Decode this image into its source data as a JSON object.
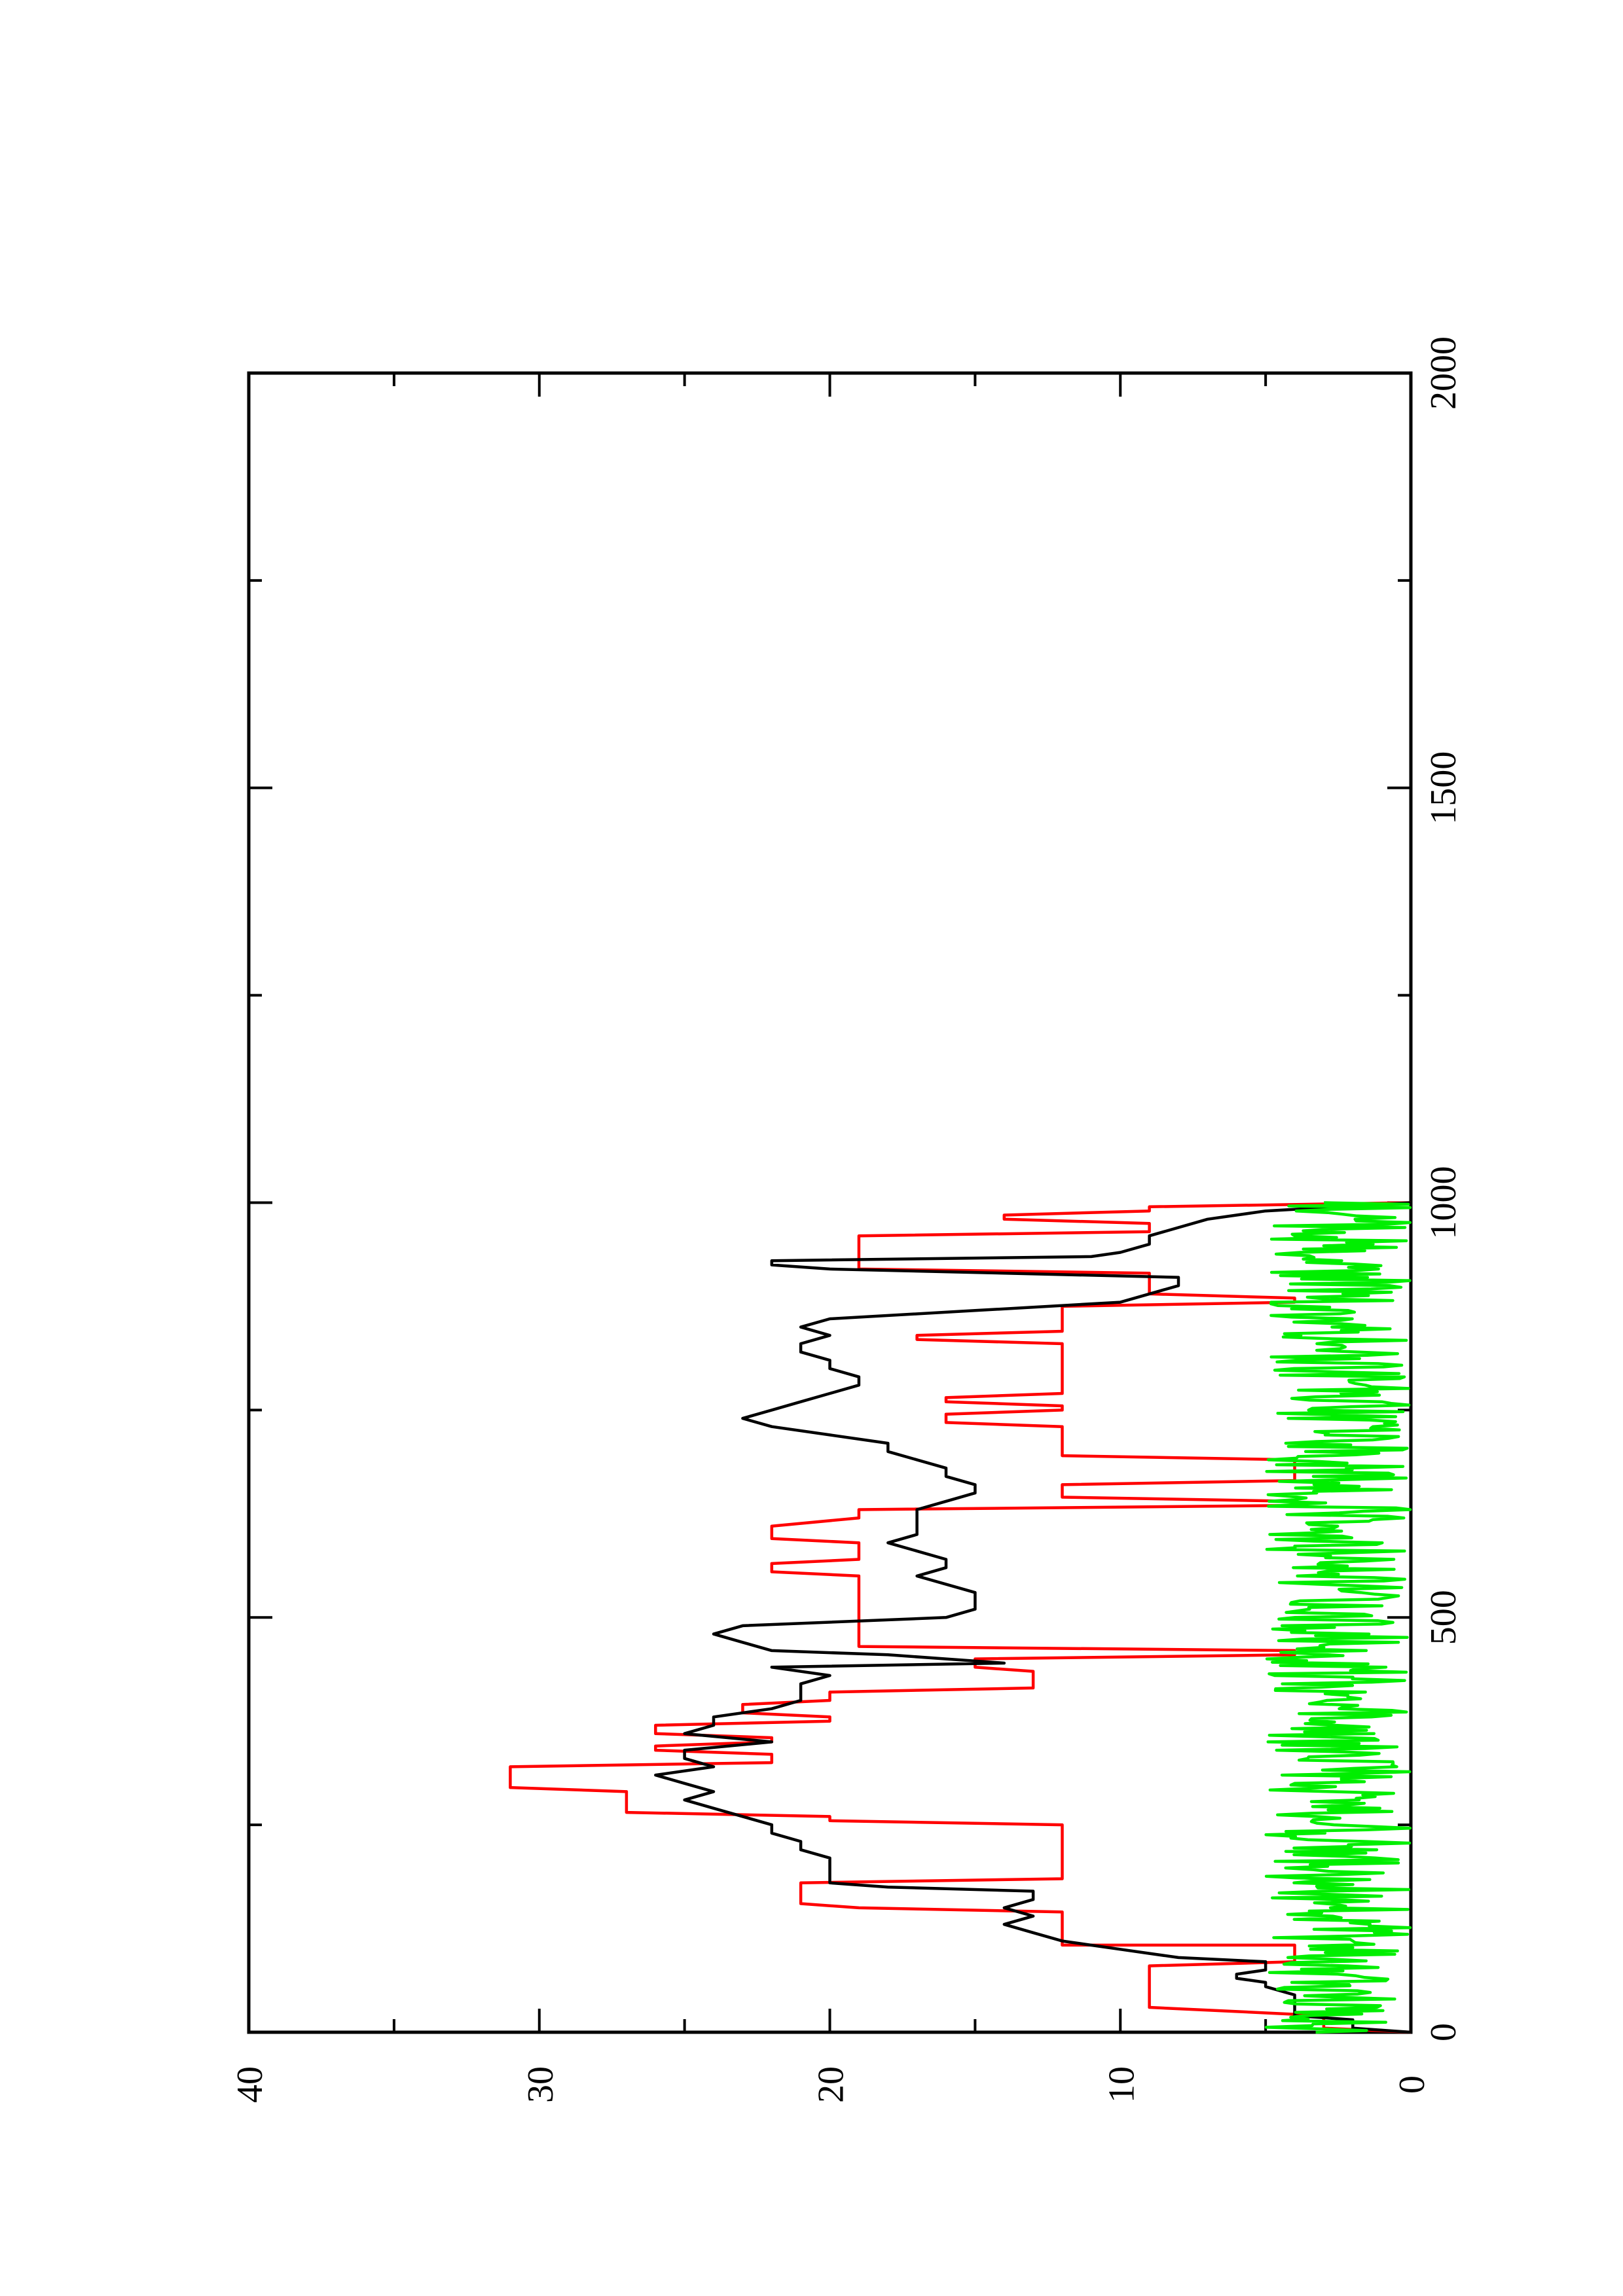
{
  "chart_data": {
    "type": "line",
    "orientation": "rotated-90",
    "xlim": [
      0,
      2000
    ],
    "ylim": [
      0,
      40
    ],
    "x_ticks_major": [
      0,
      500,
      1000,
      1500,
      2000
    ],
    "x_ticks_minor": [
      250,
      750,
      1250,
      1750
    ],
    "y_ticks_major": [
      0,
      10,
      20,
      30,
      40
    ],
    "y_ticks_minor": [
      5,
      15,
      25,
      35
    ],
    "x_tick_labels": [
      "0",
      "500",
      "1000",
      "1500",
      "2000"
    ],
    "y_tick_labels": [
      "0",
      "10",
      "20",
      "30",
      "40"
    ],
    "title": "",
    "xlabel": "",
    "ylabel": "",
    "grid": false,
    "series": [
      {
        "color": "#ff0000",
        "step": true,
        "points": [
          [
            0,
            0
          ],
          [
            5,
            3
          ],
          [
            20,
            3
          ],
          [
            30,
            9
          ],
          [
            80,
            9
          ],
          [
            85,
            4
          ],
          [
            105,
            4
          ],
          [
            105,
            12
          ],
          [
            145,
            12
          ],
          [
            150,
            19
          ],
          [
            155,
            21
          ],
          [
            180,
            21
          ],
          [
            185,
            12
          ],
          [
            250,
            12
          ],
          [
            255,
            20
          ],
          [
            260,
            20
          ],
          [
            265,
            27
          ],
          [
            290,
            27
          ],
          [
            295,
            31
          ],
          [
            320,
            31
          ],
          [
            325,
            22
          ],
          [
            335,
            22
          ],
          [
            340,
            26
          ],
          [
            345,
            26
          ],
          [
            350,
            22
          ],
          [
            355,
            22
          ],
          [
            360,
            26
          ],
          [
            370,
            26
          ],
          [
            375,
            20
          ],
          [
            380,
            20
          ],
          [
            385,
            23
          ],
          [
            395,
            23
          ],
          [
            400,
            20
          ],
          [
            410,
            20
          ],
          [
            415,
            13
          ],
          [
            435,
            13
          ],
          [
            440,
            15
          ],
          [
            450,
            15
          ],
          [
            455,
            4
          ],
          [
            460,
            4
          ],
          [
            465,
            19
          ],
          [
            470,
            19
          ],
          [
            480,
            19
          ],
          [
            490,
            19
          ],
          [
            550,
            19
          ],
          [
            555,
            22
          ],
          [
            565,
            22
          ],
          [
            570,
            19
          ],
          [
            590,
            19
          ],
          [
            595,
            22
          ],
          [
            610,
            22
          ],
          [
            620,
            19
          ],
          [
            630,
            19
          ],
          [
            635,
            4
          ],
          [
            640,
            4
          ],
          [
            645,
            12
          ],
          [
            660,
            12
          ],
          [
            665,
            4
          ],
          [
            690,
            4
          ],
          [
            695,
            12
          ],
          [
            730,
            12
          ],
          [
            735,
            16
          ],
          [
            745,
            16
          ],
          [
            750,
            12
          ],
          [
            755,
            12
          ],
          [
            760,
            16
          ],
          [
            765,
            16
          ],
          [
            770,
            12
          ],
          [
            830,
            12
          ],
          [
            835,
            17
          ],
          [
            840,
            17
          ],
          [
            845,
            12
          ],
          [
            875,
            12
          ],
          [
            880,
            4
          ],
          [
            885,
            4
          ],
          [
            890,
            9
          ],
          [
            915,
            9
          ],
          [
            920,
            19
          ],
          [
            960,
            19
          ],
          [
            965,
            9
          ],
          [
            975,
            9
          ],
          [
            980,
            14
          ],
          [
            985,
            14
          ],
          [
            990,
            9
          ],
          [
            995,
            9
          ],
          [
            1000,
            0
          ]
        ]
      },
      {
        "color": "#000000",
        "step": false,
        "points": [
          [
            0,
            0
          ],
          [
            5,
            2
          ],
          [
            15,
            2
          ],
          [
            20,
            4
          ],
          [
            30,
            4
          ],
          [
            45,
            4
          ],
          [
            55,
            5
          ],
          [
            60,
            5
          ],
          [
            65,
            6
          ],
          [
            70,
            6
          ],
          [
            75,
            5
          ],
          [
            85,
            5
          ],
          [
            90,
            8
          ],
          [
            95,
            9
          ],
          [
            100,
            10
          ],
          [
            110,
            12
          ],
          [
            120,
            13
          ],
          [
            130,
            14
          ],
          [
            140,
            13
          ],
          [
            150,
            14
          ],
          [
            160,
            13
          ],
          [
            170,
            13
          ],
          [
            175,
            18
          ],
          [
            180,
            20
          ],
          [
            190,
            20
          ],
          [
            200,
            20
          ],
          [
            210,
            20
          ],
          [
            220,
            21
          ],
          [
            230,
            21
          ],
          [
            240,
            22
          ],
          [
            250,
            22
          ],
          [
            260,
            23
          ],
          [
            270,
            24
          ],
          [
            280,
            25
          ],
          [
            290,
            24
          ],
          [
            300,
            25
          ],
          [
            310,
            26
          ],
          [
            320,
            24
          ],
          [
            330,
            25
          ],
          [
            340,
            25
          ],
          [
            350,
            22
          ],
          [
            360,
            25
          ],
          [
            370,
            24
          ],
          [
            380,
            24
          ],
          [
            390,
            22
          ],
          [
            400,
            21
          ],
          [
            410,
            21
          ],
          [
            420,
            21
          ],
          [
            430,
            20
          ],
          [
            440,
            22
          ],
          [
            445,
            14
          ],
          [
            450,
            16
          ],
          [
            455,
            18
          ],
          [
            460,
            22
          ],
          [
            470,
            23
          ],
          [
            480,
            24
          ],
          [
            490,
            23
          ],
          [
            500,
            16
          ],
          [
            510,
            15
          ],
          [
            520,
            15
          ],
          [
            530,
            15
          ],
          [
            540,
            16
          ],
          [
            550,
            17
          ],
          [
            560,
            16
          ],
          [
            570,
            16
          ],
          [
            580,
            17
          ],
          [
            590,
            18
          ],
          [
            600,
            17
          ],
          [
            610,
            17
          ],
          [
            620,
            17
          ],
          [
            630,
            17
          ],
          [
            640,
            16
          ],
          [
            650,
            15
          ],
          [
            660,
            15
          ],
          [
            670,
            16
          ],
          [
            680,
            16
          ],
          [
            690,
            17
          ],
          [
            700,
            18
          ],
          [
            710,
            18
          ],
          [
            720,
            20
          ],
          [
            730,
            22
          ],
          [
            740,
            23
          ],
          [
            750,
            22
          ],
          [
            760,
            21
          ],
          [
            770,
            20
          ],
          [
            780,
            19
          ],
          [
            790,
            19
          ],
          [
            800,
            20
          ],
          [
            810,
            20
          ],
          [
            820,
            21
          ],
          [
            830,
            21
          ],
          [
            840,
            20
          ],
          [
            850,
            21
          ],
          [
            860,
            20
          ],
          [
            870,
            15
          ],
          [
            880,
            10
          ],
          [
            890,
            9
          ],
          [
            900,
            8
          ],
          [
            910,
            8
          ],
          [
            920,
            20
          ],
          [
            925,
            22
          ],
          [
            930,
            22
          ],
          [
            935,
            11
          ],
          [
            940,
            10
          ],
          [
            950,
            9
          ],
          [
            960,
            9
          ],
          [
            970,
            8
          ],
          [
            980,
            7
          ],
          [
            990,
            5
          ],
          [
            1000,
            0
          ]
        ]
      },
      {
        "color": "#00ee00",
        "step": false,
        "noise": true,
        "x_range": [
          0,
          1000
        ],
        "y_range": [
          0,
          5
        ]
      }
    ]
  }
}
